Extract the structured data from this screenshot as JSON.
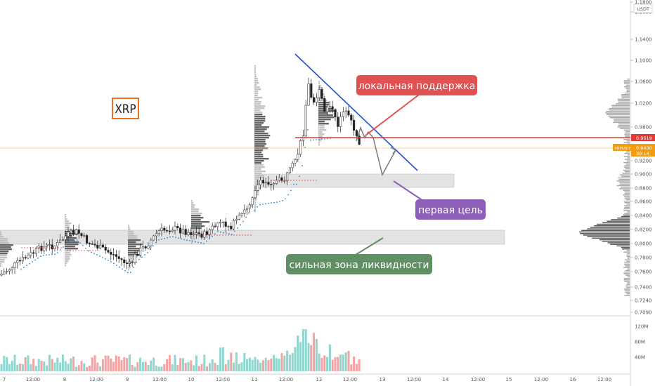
{
  "chart_data": {
    "type": "candlestick",
    "symbol": "XRP",
    "pair_tag": "XRPUSDT",
    "unit": "USDT",
    "current_price": "0.9430",
    "countdown": "30:14",
    "resistance_price": "0.9619",
    "ylim": [
      0.7,
      1.16
    ],
    "y_ticks": [
      "1.1800",
      "1.1600",
      "1.1400",
      "1.1000",
      "1.0600",
      "1.0200",
      "0.9800",
      "0.9200",
      "0.9000",
      "0.8800",
      "0.8600",
      "0.8400",
      "0.8200",
      "0.8000",
      "0.7800",
      "0.7600",
      "0.7400",
      "0.7240",
      "0.7090"
    ],
    "volume_ticks": [
      "120M",
      "80M",
      "40M"
    ],
    "x_ticks": [
      "7",
      "12:00",
      "8",
      "12:00",
      "9",
      "12:00",
      "10",
      "12:00",
      "11",
      "12:00",
      "12",
      "12:00",
      "13",
      "12:00",
      "14",
      "12:00",
      "15",
      "12:00",
      "16",
      "12:00"
    ],
    "annotations": {
      "local_support": "локальная поддержка",
      "first_target": "первая цель",
      "liquidity_zone": "сильная зона ликвидности"
    },
    "colors": {
      "up": "#26a69a",
      "down": "#ef5350",
      "support_label": "#e05252",
      "target_label": "#8e5fb8",
      "zone_label": "#5f8f63",
      "trendline": "#1f4ed8",
      "resistance_line": "#e53935",
      "price_tag": "#f39c12"
    }
  }
}
